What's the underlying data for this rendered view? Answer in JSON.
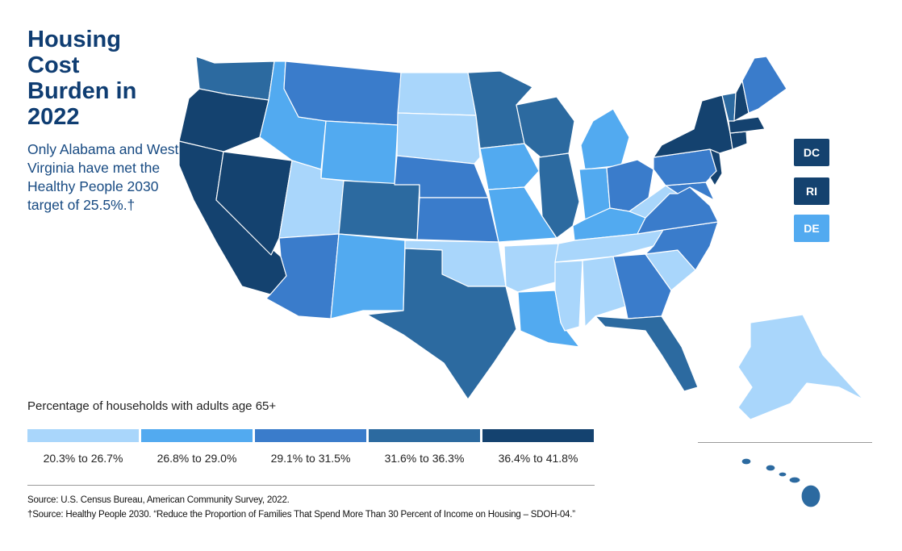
{
  "title": "Housing Cost Burden in 2022",
  "subtitle": "Only Alabama and West Virginia have met the Healthy People 2030 target of 25.5%.†",
  "legend": {
    "title": "Percentage of households with adults age 65+",
    "bins": [
      {
        "label": "20.3% to 26.7%",
        "color": "#a9d6fb"
      },
      {
        "label": "26.8% to 29.0%",
        "color": "#52aaf0"
      },
      {
        "label": "29.1% to 31.5%",
        "color": "#3a7ccb"
      },
      {
        "label": "31.6% to 36.3%",
        "color": "#2c6aa0"
      },
      {
        "label": "36.4% to 41.8%",
        "color": "#14426f"
      }
    ]
  },
  "small_states": [
    {
      "abbr": "DC",
      "bin": 4
    },
    {
      "abbr": "RI",
      "bin": 4
    },
    {
      "abbr": "DE",
      "bin": 1
    }
  ],
  "states": [
    {
      "name": "Washington",
      "bin": 3
    },
    {
      "name": "Oregon",
      "bin": 4
    },
    {
      "name": "California",
      "bin": 4
    },
    {
      "name": "Nevada",
      "bin": 4
    },
    {
      "name": "Idaho",
      "bin": 1
    },
    {
      "name": "Montana",
      "bin": 2
    },
    {
      "name": "Wyoming",
      "bin": 1
    },
    {
      "name": "Utah",
      "bin": 0
    },
    {
      "name": "Arizona",
      "bin": 2
    },
    {
      "name": "Colorado",
      "bin": 3
    },
    {
      "name": "New Mexico",
      "bin": 1
    },
    {
      "name": "North Dakota",
      "bin": 0
    },
    {
      "name": "South Dakota",
      "bin": 0
    },
    {
      "name": "Nebraska",
      "bin": 2
    },
    {
      "name": "Kansas",
      "bin": 2
    },
    {
      "name": "Oklahoma",
      "bin": 0
    },
    {
      "name": "Texas",
      "bin": 3
    },
    {
      "name": "Minnesota",
      "bin": 3
    },
    {
      "name": "Iowa",
      "bin": 1
    },
    {
      "name": "Missouri",
      "bin": 1
    },
    {
      "name": "Arkansas",
      "bin": 0
    },
    {
      "name": "Louisiana",
      "bin": 1
    },
    {
      "name": "Wisconsin",
      "bin": 3
    },
    {
      "name": "Illinois",
      "bin": 3
    },
    {
      "name": "Michigan",
      "bin": 1
    },
    {
      "name": "Indiana",
      "bin": 1
    },
    {
      "name": "Ohio",
      "bin": 2
    },
    {
      "name": "Kentucky",
      "bin": 1
    },
    {
      "name": "Tennessee",
      "bin": 0
    },
    {
      "name": "Mississippi",
      "bin": 0
    },
    {
      "name": "Alabama",
      "bin": 0
    },
    {
      "name": "Georgia",
      "bin": 2
    },
    {
      "name": "Florida",
      "bin": 3
    },
    {
      "name": "South Carolina",
      "bin": 0
    },
    {
      "name": "North Carolina",
      "bin": 2
    },
    {
      "name": "Virginia",
      "bin": 2
    },
    {
      "name": "West Virginia",
      "bin": 0
    },
    {
      "name": "Maryland",
      "bin": 2
    },
    {
      "name": "Pennsylvania",
      "bin": 2
    },
    {
      "name": "New Jersey",
      "bin": 4
    },
    {
      "name": "New York",
      "bin": 4
    },
    {
      "name": "Connecticut",
      "bin": 4
    },
    {
      "name": "Massachusetts",
      "bin": 4
    },
    {
      "name": "Vermont",
      "bin": 3
    },
    {
      "name": "New Hampshire",
      "bin": 4
    },
    {
      "name": "Maine",
      "bin": 2
    },
    {
      "name": "Alaska",
      "bin": 0
    },
    {
      "name": "Hawaii",
      "bin": 3
    }
  ],
  "sources": [
    "Source: U.S. Census Bureau, American Community Survey, 2022.",
    "†Source: Healthy People 2030. “Reduce the Proportion of Families That Spend More Than 30 Percent of Income on Housing – SDOH-04.”"
  ]
}
